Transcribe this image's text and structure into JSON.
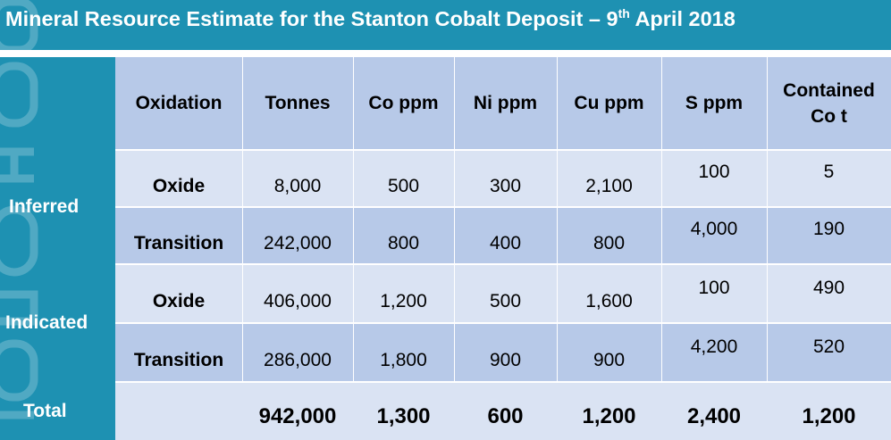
{
  "title": {
    "prefix": "Mineral Resource Estimate for the Stanton Cobalt Deposit – 9",
    "superscript": "th",
    "suffix": " April 2018"
  },
  "table": {
    "headers": [
      "Oxidation",
      "Tonnes",
      "Co ppm",
      "Ni ppm",
      "Cu ppm",
      "S ppm",
      "Contained Co t"
    ],
    "groups": [
      {
        "label": "Inferred",
        "rows": [
          {
            "oxidation": "Oxide",
            "tonnes": "8,000",
            "co": "500",
            "ni": "300",
            "cu": "2,100",
            "s": "100",
            "contained": "5"
          },
          {
            "oxidation": "Transition",
            "tonnes": "242,000",
            "co": "800",
            "ni": "400",
            "cu": "800",
            "s": "4,000",
            "contained": "190"
          }
        ]
      },
      {
        "label": "Indicated",
        "rows": [
          {
            "oxidation": "Oxide",
            "tonnes": "406,000",
            "co": "1,200",
            "ni": "500",
            "cu": "1,600",
            "s": "100",
            "contained": "490"
          },
          {
            "oxidation": "Transition",
            "tonnes": "286,000",
            "co": "1,800",
            "ni": "900",
            "cu": "900",
            "s": "4,200",
            "contained": "520"
          }
        ]
      }
    ],
    "total": {
      "label": "Total",
      "oxidation": "",
      "tonnes": "942,000",
      "co": "1,300",
      "ni": "600",
      "cu": "1,200",
      "s": "2,400",
      "contained": "1,200"
    }
  },
  "colors": {
    "accent": "#1e91b2",
    "header_bg": "#b7c9e8",
    "row_light": "#dae3f3",
    "row_dark": "#b7c9e8",
    "text": "#000000",
    "title_text": "#ffffff"
  }
}
